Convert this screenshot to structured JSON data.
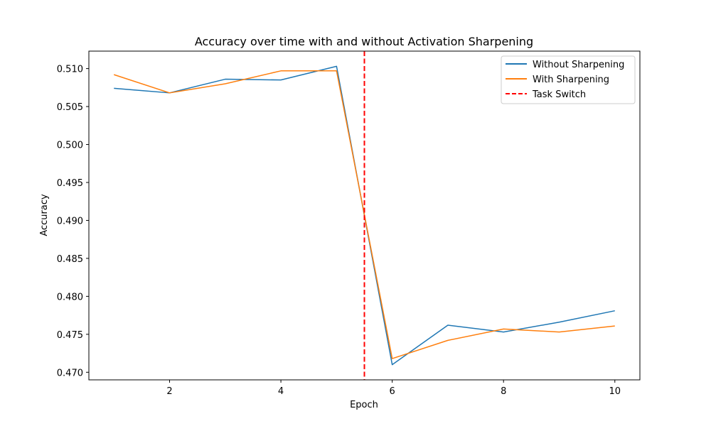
{
  "chart_data": {
    "type": "line",
    "title": "Accuracy over time with and without Activation Sharpening",
    "xlabel": "Epoch",
    "ylabel": "Accuracy",
    "xlim": [
      0.55,
      10.45
    ],
    "ylim": [
      0.469,
      0.5123
    ],
    "x_ticks": [
      2,
      4,
      6,
      8,
      10
    ],
    "x_tick_labels": [
      "2",
      "4",
      "6",
      "8",
      "10"
    ],
    "y_ticks": [
      0.47,
      0.475,
      0.48,
      0.485,
      0.49,
      0.495,
      0.5,
      0.505,
      0.51
    ],
    "y_tick_labels": [
      "0.470",
      "0.475",
      "0.480",
      "0.485",
      "0.490",
      "0.495",
      "0.500",
      "0.505",
      "0.510"
    ],
    "x": [
      1,
      2,
      3,
      4,
      5,
      6,
      7,
      8,
      9,
      10
    ],
    "series": [
      {
        "name": "Without Sharpening",
        "color": "#1f77b4",
        "values": [
          0.5074,
          0.5068,
          0.5086,
          0.5085,
          0.5103,
          0.471,
          0.4762,
          0.4753,
          0.4766,
          0.4781
        ]
      },
      {
        "name": "With Sharpening",
        "color": "#ff7f0e",
        "values": [
          0.5092,
          0.5068,
          0.508,
          0.5097,
          0.5097,
          0.4718,
          0.4742,
          0.4757,
          0.4753,
          0.4761
        ]
      }
    ],
    "vline": {
      "name": "Task Switch",
      "x": 5.5,
      "color": "#ff0000",
      "style": "dashed"
    },
    "legend_position": "top-right",
    "grid": false
  }
}
